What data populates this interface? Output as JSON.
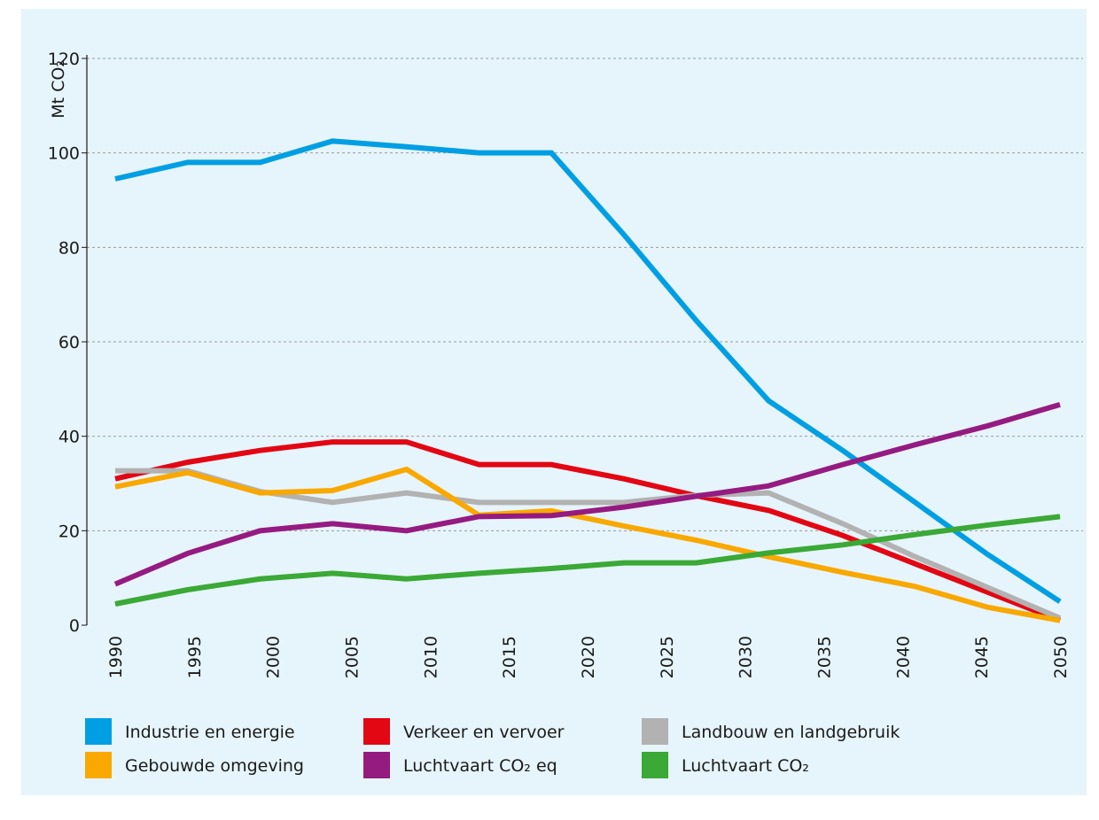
{
  "chart_data": {
    "type": "line",
    "y_label": "Mt CO₂",
    "x": [
      1990,
      1994.6,
      1999.2,
      2003.8,
      2008.5,
      2013.1,
      2017.7,
      2022.3,
      2026.9,
      2031.5,
      2036.2,
      2040.8,
      2045.4,
      2050
    ],
    "xlim": [
      1990,
      2050
    ],
    "xticks": [
      1990,
      1995,
      2000,
      2005,
      2010,
      2015,
      2020,
      2025,
      2030,
      2035,
      2040,
      2045,
      2050
    ],
    "ylim": [
      0,
      120
    ],
    "yticks": [
      0,
      20,
      40,
      60,
      80,
      100,
      120
    ],
    "grid": true,
    "legend": "bottom",
    "series": [
      {
        "name": "Industrie en energie",
        "color": "#009fe3",
        "values": [
          94.5,
          98,
          98,
          102.5,
          101.3,
          100,
          100,
          82.7,
          64.5,
          47.5,
          37,
          26,
          15,
          5
        ]
      },
      {
        "name": "Verkeer en vervoer",
        "color": "#e30613",
        "values": [
          31,
          34.5,
          37,
          38.8,
          38.8,
          34,
          34,
          31,
          27.4,
          24.3,
          19,
          13,
          7,
          1
        ]
      },
      {
        "name": "Landbouw en landgebruik",
        "color": "#b2b2b2",
        "values": [
          32.7,
          32.7,
          28.3,
          26,
          28,
          26,
          26,
          26,
          27.5,
          28,
          21.5,
          14.5,
          8,
          1.5
        ]
      },
      {
        "name": "Gebouwde omgeving",
        "color": "#f9a800",
        "values": [
          29.3,
          32.3,
          28,
          28.5,
          33,
          23.3,
          24.2,
          21,
          18,
          14.5,
          11.2,
          8.2,
          3.8,
          1
        ]
      },
      {
        "name": "Luchtvaart CO₂ eq",
        "color": "#951b81",
        "values": [
          8.7,
          15.2,
          20,
          21.5,
          20,
          23,
          23.2,
          25,
          27.3,
          29.5,
          34,
          38.2,
          42.2,
          46.7
        ]
      },
      {
        "name": "Luchtvaart CO₂",
        "color": "#3aa935",
        "values": [
          4.5,
          7.5,
          9.8,
          11,
          9.8,
          11,
          12,
          13.2,
          13.2,
          15.3,
          17,
          19.2,
          21.2,
          23
        ]
      }
    ]
  }
}
